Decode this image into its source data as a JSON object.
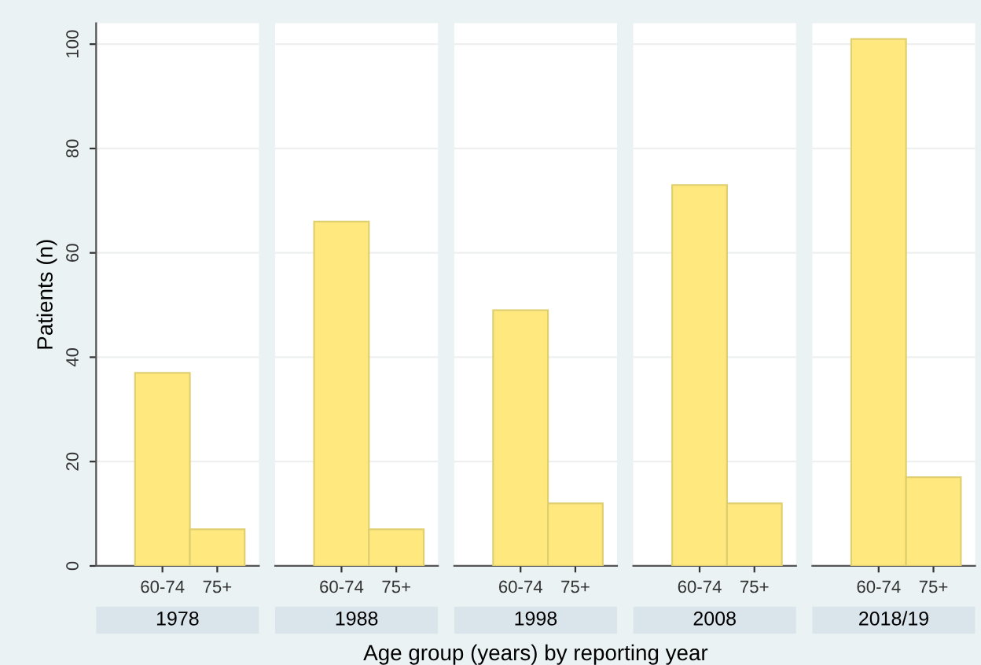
{
  "chart_data": [
    {
      "type": "bar",
      "title": "1978",
      "ylabel": "Patients (n)",
      "categories": [
        "60-74",
        "75+"
      ],
      "values": [
        37,
        7
      ],
      "color": "#ffe97f",
      "ylim": [
        0,
        104
      ],
      "yticks": [
        0,
        20,
        40,
        60,
        80,
        100
      ],
      "grid": "y"
    },
    {
      "type": "bar",
      "title": "1988",
      "categories": [
        "60-74",
        "75+"
      ],
      "values": [
        66,
        7
      ],
      "color": "#ffe97f",
      "ylim": [
        0,
        104
      ],
      "yticks": [
        0,
        20,
        40,
        60,
        80,
        100
      ],
      "grid": "y",
      "tick_labels": "x"
    },
    {
      "type": "bar",
      "title": "1998",
      "xlabel": "Age group (years) by reporting year",
      "categories": [
        "60-74",
        "75+"
      ],
      "values": [
        49,
        12
      ],
      "color": "#ffe97f",
      "ylim": [
        0,
        104
      ],
      "yticks": [
        0,
        20,
        40,
        60,
        80,
        100
      ],
      "grid": "y",
      "tick_labels": "x"
    },
    {
      "type": "bar",
      "title": "2008",
      "categories": [
        "60-74",
        "75+"
      ],
      "values": [
        73,
        12
      ],
      "color": "#ffe97f",
      "ylim": [
        0,
        104
      ],
      "yticks": [
        0,
        20,
        40,
        60,
        80,
        100
      ],
      "grid": "y",
      "tick_labels": "x"
    },
    {
      "type": "bar",
      "title": "2018/19",
      "categories": [
        "60-74",
        "75+"
      ],
      "values": [
        101,
        17
      ],
      "color": "#ffe97f",
      "ylim": [
        0,
        104
      ],
      "yticks": [
        0,
        20,
        40,
        60,
        80,
        100
      ],
      "grid": "y",
      "tick_labels": "x"
    }
  ]
}
